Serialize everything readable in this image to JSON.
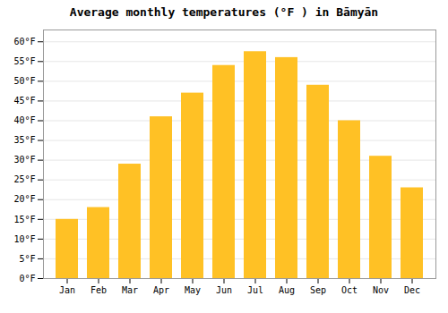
{
  "chart_data": {
    "type": "bar",
    "title": "Average monthly temperatures (°F ) in Bāmyān",
    "categories": [
      "Jan",
      "Feb",
      "Mar",
      "Apr",
      "May",
      "Jun",
      "Jul",
      "Aug",
      "Sep",
      "Oct",
      "Nov",
      "Dec"
    ],
    "values": [
      15,
      18,
      29,
      41,
      47,
      54,
      57.5,
      56,
      49,
      40,
      31,
      23
    ],
    "color": "#FFC125",
    "ylim": [
      0,
      63
    ],
    "yticks": [
      {
        "value": 0,
        "label": "0°F"
      },
      {
        "value": 5,
        "label": "5°F"
      },
      {
        "value": 10,
        "label": "10°F"
      },
      {
        "value": 15,
        "label": "15°F"
      },
      {
        "value": 20,
        "label": "20°F"
      },
      {
        "value": 25,
        "label": "25°F"
      },
      {
        "value": 30,
        "label": "30°F"
      },
      {
        "value": 35,
        "label": "35°F"
      },
      {
        "value": 40,
        "label": "40°F"
      },
      {
        "value": 45,
        "label": "45°F"
      },
      {
        "value": 50,
        "label": "50°F"
      },
      {
        "value": 55,
        "label": "55°F"
      },
      {
        "value": 60,
        "label": "60°F"
      }
    ],
    "grid": true
  }
}
